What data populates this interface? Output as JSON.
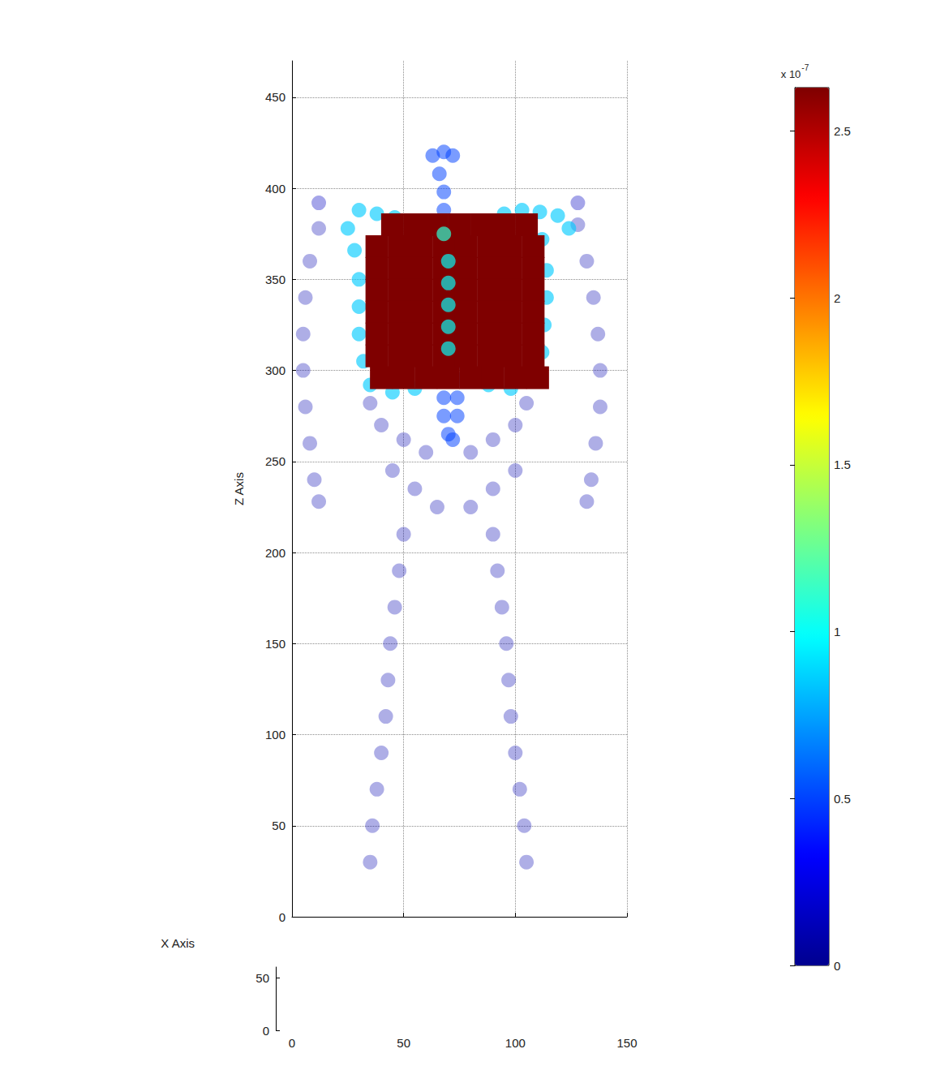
{
  "chart_data": {
    "type": "scatter",
    "x_label": "X Axis",
    "y_label": "Z Axis",
    "xlim": [
      0,
      150
    ],
    "xticks": [
      0,
      50,
      100,
      150
    ],
    "ylim": [
      0,
      470
    ],
    "yticks": [
      0,
      50,
      100,
      150,
      200,
      250,
      300,
      350,
      400,
      450
    ],
    "depth_axis": {
      "lim": [
        0,
        60
      ],
      "ticks": [
        0,
        50
      ]
    },
    "grid": true,
    "points": [
      [
        12,
        392,
        0.15
      ],
      [
        128,
        392,
        0.15
      ],
      [
        12,
        378,
        0.1
      ],
      [
        8,
        360,
        0.1
      ],
      [
        6,
        340,
        0.1
      ],
      [
        5,
        320,
        0.1
      ],
      [
        5,
        300,
        0.1
      ],
      [
        6,
        280,
        0.1
      ],
      [
        8,
        260,
        0.1
      ],
      [
        10,
        240,
        0.1
      ],
      [
        12,
        228,
        0.1
      ],
      [
        128,
        380,
        0.1
      ],
      [
        132,
        360,
        0.1
      ],
      [
        135,
        340,
        0.1
      ],
      [
        137,
        320,
        0.1
      ],
      [
        138,
        300,
        0.1
      ],
      [
        138,
        280,
        0.1
      ],
      [
        136,
        260,
        0.1
      ],
      [
        134,
        240,
        0.1
      ],
      [
        132,
        228,
        0.1
      ],
      [
        35,
        282,
        0.1
      ],
      [
        105,
        282,
        0.1
      ],
      [
        40,
        270,
        0.1
      ],
      [
        50,
        262,
        0.1
      ],
      [
        60,
        255,
        0.1
      ],
      [
        80,
        255,
        0.1
      ],
      [
        90,
        262,
        0.1
      ],
      [
        100,
        270,
        0.1
      ],
      [
        45,
        245,
        0.1
      ],
      [
        55,
        235,
        0.1
      ],
      [
        65,
        225,
        0.1
      ],
      [
        80,
        225,
        0.1
      ],
      [
        90,
        235,
        0.1
      ],
      [
        100,
        245,
        0.1
      ],
      [
        50,
        210,
        0.1
      ],
      [
        48,
        190,
        0.1
      ],
      [
        46,
        170,
        0.1
      ],
      [
        44,
        150,
        0.1
      ],
      [
        43,
        130,
        0.1
      ],
      [
        42,
        110,
        0.1
      ],
      [
        40,
        90,
        0.1
      ],
      [
        38,
        70,
        0.1
      ],
      [
        36,
        50,
        0.1
      ],
      [
        35,
        30,
        0.1
      ],
      [
        90,
        210,
        0.1
      ],
      [
        92,
        190,
        0.1
      ],
      [
        94,
        170,
        0.1
      ],
      [
        96,
        150,
        0.1
      ],
      [
        97,
        130,
        0.1
      ],
      [
        98,
        110,
        0.1
      ],
      [
        100,
        90,
        0.1
      ],
      [
        102,
        70,
        0.1
      ],
      [
        104,
        50,
        0.1
      ],
      [
        105,
        30,
        0.1
      ],
      [
        63,
        418,
        0.5
      ],
      [
        68,
        420,
        0.5
      ],
      [
        72,
        418,
        0.5
      ],
      [
        66,
        408,
        0.5
      ],
      [
        68,
        398,
        0.5
      ],
      [
        68,
        388,
        0.5
      ],
      [
        68,
        305,
        0.5
      ],
      [
        74,
        305,
        0.5
      ],
      [
        68,
        295,
        0.5
      ],
      [
        74,
        295,
        0.5
      ],
      [
        68,
        285,
        0.5
      ],
      [
        74,
        285,
        0.5
      ],
      [
        68,
        275,
        0.5
      ],
      [
        74,
        275,
        0.5
      ],
      [
        70,
        265,
        0.5
      ],
      [
        72,
        262,
        0.5
      ],
      [
        30,
        388,
        0.85
      ],
      [
        38,
        386,
        0.85
      ],
      [
        46,
        384,
        0.85
      ],
      [
        25,
        378,
        0.85
      ],
      [
        28,
        366,
        0.85
      ],
      [
        30,
        350,
        0.85
      ],
      [
        30,
        335,
        0.85
      ],
      [
        30,
        320,
        0.85
      ],
      [
        32,
        305,
        0.85
      ],
      [
        35,
        292,
        0.85
      ],
      [
        45,
        288,
        0.85
      ],
      [
        55,
        290,
        0.85
      ],
      [
        95,
        386,
        0.85
      ],
      [
        103,
        388,
        0.85
      ],
      [
        111,
        387,
        0.85
      ],
      [
        119,
        385,
        0.85
      ],
      [
        124,
        378,
        0.85
      ],
      [
        112,
        372,
        0.85
      ],
      [
        114,
        355,
        0.85
      ],
      [
        114,
        340,
        0.85
      ],
      [
        113,
        325,
        0.85
      ],
      [
        112,
        310,
        0.85
      ],
      [
        108,
        296,
        0.85
      ],
      [
        98,
        290,
        0.85
      ],
      [
        88,
        292,
        0.85
      ],
      [
        45,
        380,
        2.63
      ],
      [
        55,
        380,
        2.63
      ],
      [
        65,
        380,
        2.63
      ],
      [
        75,
        380,
        2.63
      ],
      [
        85,
        380,
        2.63
      ],
      [
        95,
        380,
        2.63
      ],
      [
        105,
        380,
        2.63
      ],
      [
        38,
        368,
        2.63
      ],
      [
        48,
        368,
        2.63
      ],
      [
        58,
        368,
        2.63
      ],
      [
        68,
        368,
        2.63
      ],
      [
        78,
        368,
        2.63
      ],
      [
        88,
        368,
        2.63
      ],
      [
        98,
        368,
        2.63
      ],
      [
        108,
        368,
        2.63
      ],
      [
        38,
        356,
        2.63
      ],
      [
        48,
        356,
        2.63
      ],
      [
        58,
        356,
        2.63
      ],
      [
        68,
        356,
        2.63
      ],
      [
        78,
        356,
        2.63
      ],
      [
        88,
        356,
        2.63
      ],
      [
        98,
        356,
        2.63
      ],
      [
        108,
        356,
        2.63
      ],
      [
        38,
        344,
        2.63
      ],
      [
        48,
        344,
        2.63
      ],
      [
        58,
        344,
        2.63
      ],
      [
        68,
        344,
        2.63
      ],
      [
        78,
        344,
        2.63
      ],
      [
        88,
        344,
        2.63
      ],
      [
        98,
        344,
        2.63
      ],
      [
        108,
        344,
        2.63
      ],
      [
        38,
        332,
        2.63
      ],
      [
        48,
        332,
        2.63
      ],
      [
        58,
        332,
        2.63
      ],
      [
        68,
        332,
        2.63
      ],
      [
        78,
        332,
        2.63
      ],
      [
        88,
        332,
        2.63
      ],
      [
        98,
        332,
        2.63
      ],
      [
        108,
        332,
        2.63
      ],
      [
        38,
        320,
        2.63
      ],
      [
        48,
        320,
        2.63
      ],
      [
        58,
        320,
        2.63
      ],
      [
        68,
        320,
        2.63
      ],
      [
        78,
        320,
        2.63
      ],
      [
        88,
        320,
        2.63
      ],
      [
        98,
        320,
        2.63
      ],
      [
        108,
        320,
        2.63
      ],
      [
        38,
        308,
        2.63
      ],
      [
        48,
        308,
        2.63
      ],
      [
        58,
        308,
        2.63
      ],
      [
        68,
        308,
        2.63
      ],
      [
        78,
        308,
        2.63
      ],
      [
        88,
        308,
        2.63
      ],
      [
        98,
        308,
        2.63
      ],
      [
        108,
        308,
        2.63
      ],
      [
        40,
        296,
        2.63
      ],
      [
        50,
        296,
        2.63
      ],
      [
        60,
        296,
        2.63
      ],
      [
        70,
        296,
        2.63
      ],
      [
        80,
        296,
        2.63
      ],
      [
        90,
        296,
        2.63
      ],
      [
        100,
        296,
        2.63
      ],
      [
        110,
        296,
        2.63
      ],
      [
        68,
        375,
        1.1
      ],
      [
        70,
        360,
        1.0
      ],
      [
        70,
        348,
        1.0
      ],
      [
        70,
        336,
        1.0
      ],
      [
        70,
        324,
        1.0
      ],
      [
        70,
        312,
        1.0
      ]
    ],
    "colorbar": {
      "range": [
        0,
        2.63
      ],
      "ticks": [
        0,
        0.5,
        1,
        1.5,
        2,
        2.5
      ],
      "label": {
        "base": "x 10",
        "exponent": "-7"
      }
    }
  }
}
